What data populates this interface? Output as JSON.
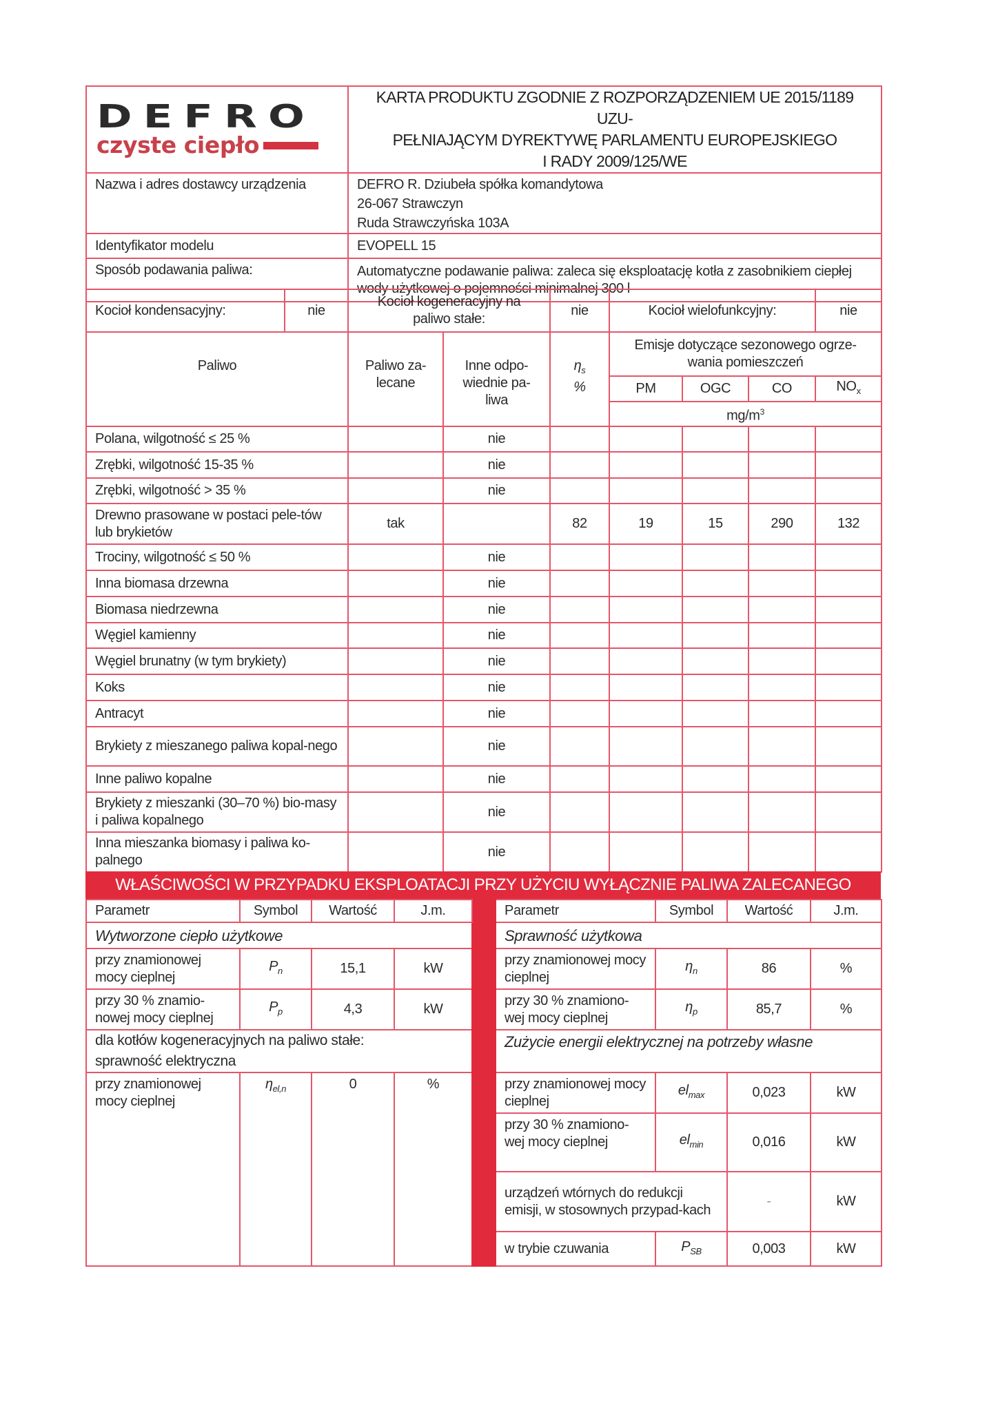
{
  "logo": {
    "brand": "DEFRO",
    "tagline": "czyste ciepło",
    "brand_color": "#2b2b2b",
    "tagline_color": "#c8414a"
  },
  "title": [
    "KARTA PRODUKTU ZGODNIE Z ROZPORZĄDZENIEM UE 2015/1189 UZU-",
    "PEŁNIAJĄCYM DYREKTYWĘ PARLAMENTU EUROPEJSKIEGO",
    "I RADY 2009/125/WE"
  ],
  "supplier": {
    "label": "Nazwa i adres dostawcy urządzenia",
    "lines": [
      "DEFRO R. Dziubeła spółka komandytowa",
      "26-067 Strawczyn",
      "Ruda Strawczyńska 103A"
    ]
  },
  "model": {
    "label": "Identyfikator modelu",
    "value": "EVOPELL 15"
  },
  "feed": {
    "label": "Sposób podawania paliwa:",
    "value": "Automatyczne podawanie paliwa: zaleca się eksploatację kotła z zasobnikiem ciepłej wody użytkowej o pojemności minimalnej 300 l"
  },
  "boiler_type": {
    "condensing_label": "Kocioł kondensacyjny:",
    "condensing": "nie",
    "cogeneration_label": "Kocioł kogeneracyjny na paliwo stałe:",
    "cogeneration": "nie",
    "multifunction_label": "Kocioł wielofunkcyjny:",
    "multifunction": "nie"
  },
  "fuel_header": {
    "fuel": "Paliwo",
    "recommended": "Paliwo za-lecane",
    "other": "Inne odpo-wiednie pa-liwa",
    "eta": "η",
    "eta_sub": "s",
    "percent": "%",
    "emissions": "Emisje dotyczące sezonowego ogrze-wania pomieszczeń",
    "pm": "PM",
    "ogc": "OGC",
    "co": "CO",
    "nox": "NO",
    "nox_sub": "x",
    "unit": "mg/m",
    "unit_sup": "3"
  },
  "fuels": [
    {
      "name": "Polana, wilgotność ≤ 25 %",
      "rec": "",
      "other": "nie",
      "eta": "",
      "pm": "",
      "ogc": "",
      "co": "",
      "nox": ""
    },
    {
      "name": "Zrębki, wilgotność 15-35 %",
      "rec": "",
      "other": "nie",
      "eta": "",
      "pm": "",
      "ogc": "",
      "co": "",
      "nox": ""
    },
    {
      "name": "Zrębki, wilgotność > 35 %",
      "rec": "",
      "other": "nie",
      "eta": "",
      "pm": "",
      "ogc": "",
      "co": "",
      "nox": ""
    },
    {
      "name": "Drewno prasowane w postaci pele-tów lub brykietów",
      "rec": "tak",
      "other": "",
      "eta": "82",
      "pm": "19",
      "ogc": "15",
      "co": "290",
      "nox": "132"
    },
    {
      "name": "Trociny, wilgotność ≤ 50 %",
      "rec": "",
      "other": "nie",
      "eta": "",
      "pm": "",
      "ogc": "",
      "co": "",
      "nox": ""
    },
    {
      "name": "Inna biomasa drzewna",
      "rec": "",
      "other": "nie",
      "eta": "",
      "pm": "",
      "ogc": "",
      "co": "",
      "nox": ""
    },
    {
      "name": "Biomasa niedrzewna",
      "rec": "",
      "other": "nie",
      "eta": "",
      "pm": "",
      "ogc": "",
      "co": "",
      "nox": ""
    },
    {
      "name": "Węgiel kamienny",
      "rec": "",
      "other": "nie",
      "eta": "",
      "pm": "",
      "ogc": "",
      "co": "",
      "nox": ""
    },
    {
      "name": "Węgiel brunatny (w tym brykiety)",
      "rec": "",
      "other": "nie",
      "eta": "",
      "pm": "",
      "ogc": "",
      "co": "",
      "nox": ""
    },
    {
      "name": "Koks",
      "rec": "",
      "other": "nie",
      "eta": "",
      "pm": "",
      "ogc": "",
      "co": "",
      "nox": ""
    },
    {
      "name": "Antracyt",
      "rec": "",
      "other": "nie",
      "eta": "",
      "pm": "",
      "ogc": "",
      "co": "",
      "nox": ""
    },
    {
      "name": "Brykiety z mieszanego paliwa kopal-nego",
      "rec": "",
      "other": "nie",
      "eta": "",
      "pm": "",
      "ogc": "",
      "co": "",
      "nox": ""
    },
    {
      "name": "Inne paliwo kopalne",
      "rec": "",
      "other": "nie",
      "eta": "",
      "pm": "",
      "ogc": "",
      "co": "",
      "nox": ""
    },
    {
      "name": "Brykiety z mieszanki (30–70 %) bio-masy i paliwa kopalnego",
      "rec": "",
      "other": "nie",
      "eta": "",
      "pm": "",
      "ogc": "",
      "co": "",
      "nox": ""
    },
    {
      "name": "Inna mieszanka biomasy i paliwa ko-palnego",
      "rec": "",
      "other": "nie",
      "eta": "",
      "pm": "",
      "ogc": "",
      "co": "",
      "nox": ""
    }
  ],
  "banner": "WŁAŚCIWOŚCI W PRZYPADKU EKSPLOATACJI PRZY UŻYCIU WYŁĄCZNIE PALIWA ZALECANEGO",
  "banner_color": "#e22a3d",
  "props_header": {
    "param": "Parametr",
    "symbol": "Symbol",
    "value": "Wartość",
    "unit": "J.m."
  },
  "left": {
    "section": "Wytworzone ciepło użytkowe",
    "rows": [
      {
        "param": "przy znamionowej mocy cieplnej",
        "sym": "P",
        "sub": "n",
        "value": "15,1",
        "unit": "kW"
      },
      {
        "param": "przy 30 % znamio-nowej mocy cieplnej",
        "sym": "P",
        "sub": "p",
        "value": "4,3",
        "unit": "kW"
      }
    ],
    "cogen_section": "dla kotłów kogeneracyjnych na paliwo stałe: sprawność elektryczna",
    "cogen": {
      "param": "przy znamionowej mocy cieplnej",
      "sym": "η",
      "sub": "el,n",
      "value": "0",
      "unit": "%"
    }
  },
  "right": {
    "section": "Sprawność użytkowa",
    "rows": [
      {
        "param": "przy znamionowej mocy cieplnej",
        "sym": "η",
        "sub": "n",
        "value": "86",
        "unit": "%"
      },
      {
        "param": "przy 30 % znamiono-wej mocy cieplnej",
        "sym": "η",
        "sub": "p",
        "value": "85,7",
        "unit": "%"
      }
    ],
    "elec_section": "Zużycie energii elektrycznej na potrzeby własne",
    "elec": [
      {
        "param": "przy znamionowej mocy cieplnej",
        "sym": "el",
        "sub": "max",
        "value": "0,023",
        "unit": "kW"
      },
      {
        "param": "przy 30 % znamiono-wej mocy cieplnej",
        "sym": "el",
        "sub": "min",
        "value": "0,016",
        "unit": "kW"
      },
      {
        "param": "urządzeń wtórnych do redukcji emisji, w stosownych przypad-kach",
        "value": "-",
        "unit": "kW"
      },
      {
        "param": "w trybie czuwania",
        "sym": "P",
        "sub": "SB",
        "value": "0,003",
        "unit": "kW"
      }
    ]
  }
}
